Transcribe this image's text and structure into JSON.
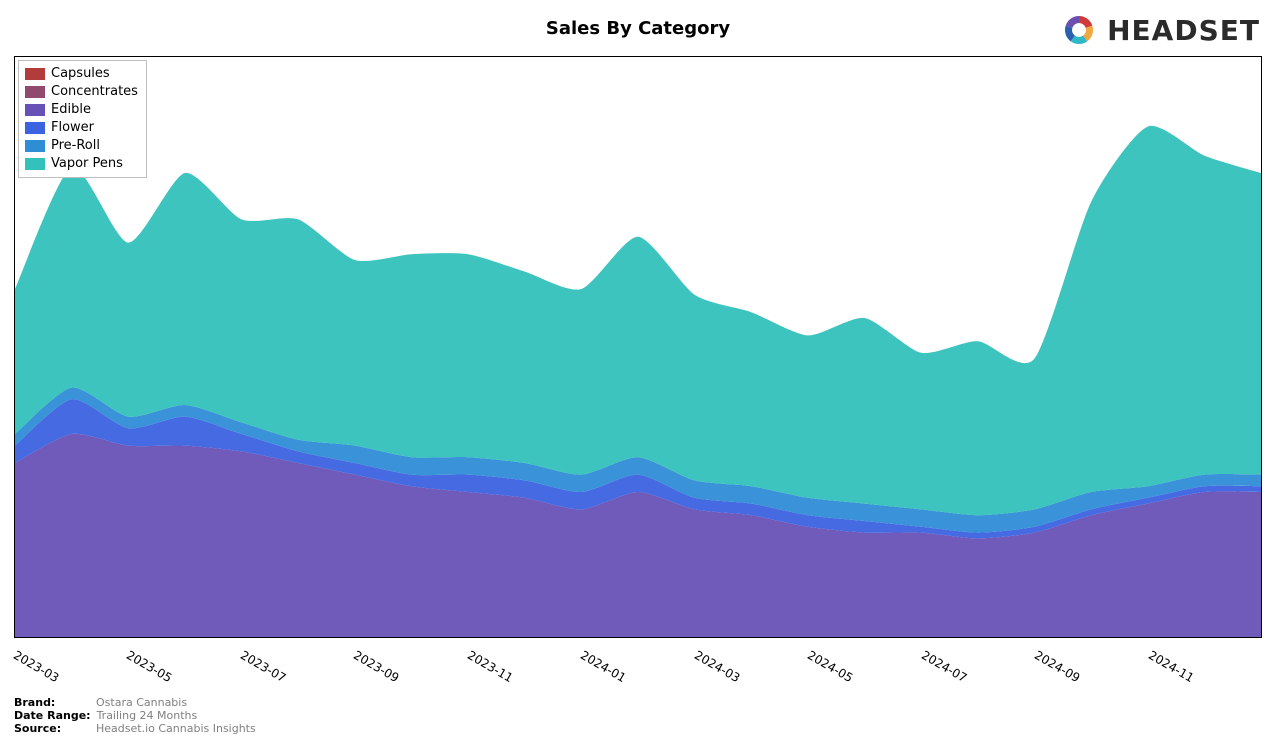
{
  "title": "Sales By Category",
  "logo_text": "HEADSET",
  "chart": {
    "type": "area",
    "background_color": "#ffffff",
    "border_color": "#000000",
    "smooth_tension": 0.35,
    "title_fontsize": 18,
    "tick_fontsize": 12,
    "legend_fontsize": 13,
    "x_labels": [
      "2023-03",
      "2023-05",
      "2023-07",
      "2023-09",
      "2023-11",
      "2024-01",
      "2024-03",
      "2024-05",
      "2024-07",
      "2024-09",
      "2024-11"
    ],
    "n_points": 23,
    "ylim": [
      0,
      100
    ],
    "series": [
      {
        "name": "Capsules",
        "color": "#b23b3b",
        "values": [
          0,
          0,
          0,
          0,
          0,
          0,
          0,
          0,
          0,
          0,
          0,
          0,
          0,
          0,
          0,
          0,
          0,
          0,
          0,
          0,
          0,
          0,
          0
        ]
      },
      {
        "name": "Concentrates",
        "color": "#8f4a6d",
        "values": [
          0,
          0,
          0,
          0,
          0,
          0,
          0,
          0,
          0,
          0,
          0,
          0,
          0,
          0,
          0,
          0,
          0,
          0,
          0,
          0,
          0,
          0,
          0
        ]
      },
      {
        "name": "Edible",
        "color": "#6851b6",
        "values": [
          30,
          35,
          33,
          33,
          32,
          30,
          28,
          26,
          25,
          24,
          22,
          25,
          22,
          21,
          19,
          18,
          18,
          17,
          18,
          21,
          23,
          25,
          25
        ]
      },
      {
        "name": "Flower",
        "color": "#3b62e0",
        "values": [
          3,
          6,
          3,
          5,
          3,
          2,
          2,
          2,
          3,
          3,
          3,
          3,
          2,
          2,
          2,
          2,
          1,
          1,
          1,
          1,
          1,
          1,
          1
        ]
      },
      {
        "name": "Pre-Roll",
        "color": "#2f8dd6",
        "values": [
          2,
          2,
          2,
          2,
          2,
          2,
          3,
          3,
          3,
          3,
          3,
          3,
          3,
          3,
          3,
          3,
          3,
          3,
          3,
          3,
          2,
          2,
          2
        ]
      },
      {
        "name": "Vapor Pens",
        "color": "#34c1bb",
        "values": [
          25,
          38,
          30,
          40,
          35,
          38,
          32,
          35,
          35,
          33,
          32,
          38,
          32,
          30,
          28,
          32,
          27,
          30,
          26,
          50,
          62,
          55,
          52
        ]
      }
    ]
  },
  "footer": {
    "brand_label": "Brand:",
    "brand_value": "Ostara Cannabis",
    "date_range_label": "Date Range:",
    "date_range_value": "Trailing 24 Months",
    "source_label": "Source:",
    "source_value": "Headset.io Cannabis Insights"
  },
  "logo_colors": [
    "#d03a3a",
    "#f0a840",
    "#2fb8c6",
    "#2a5fb0",
    "#6a4fb0"
  ]
}
